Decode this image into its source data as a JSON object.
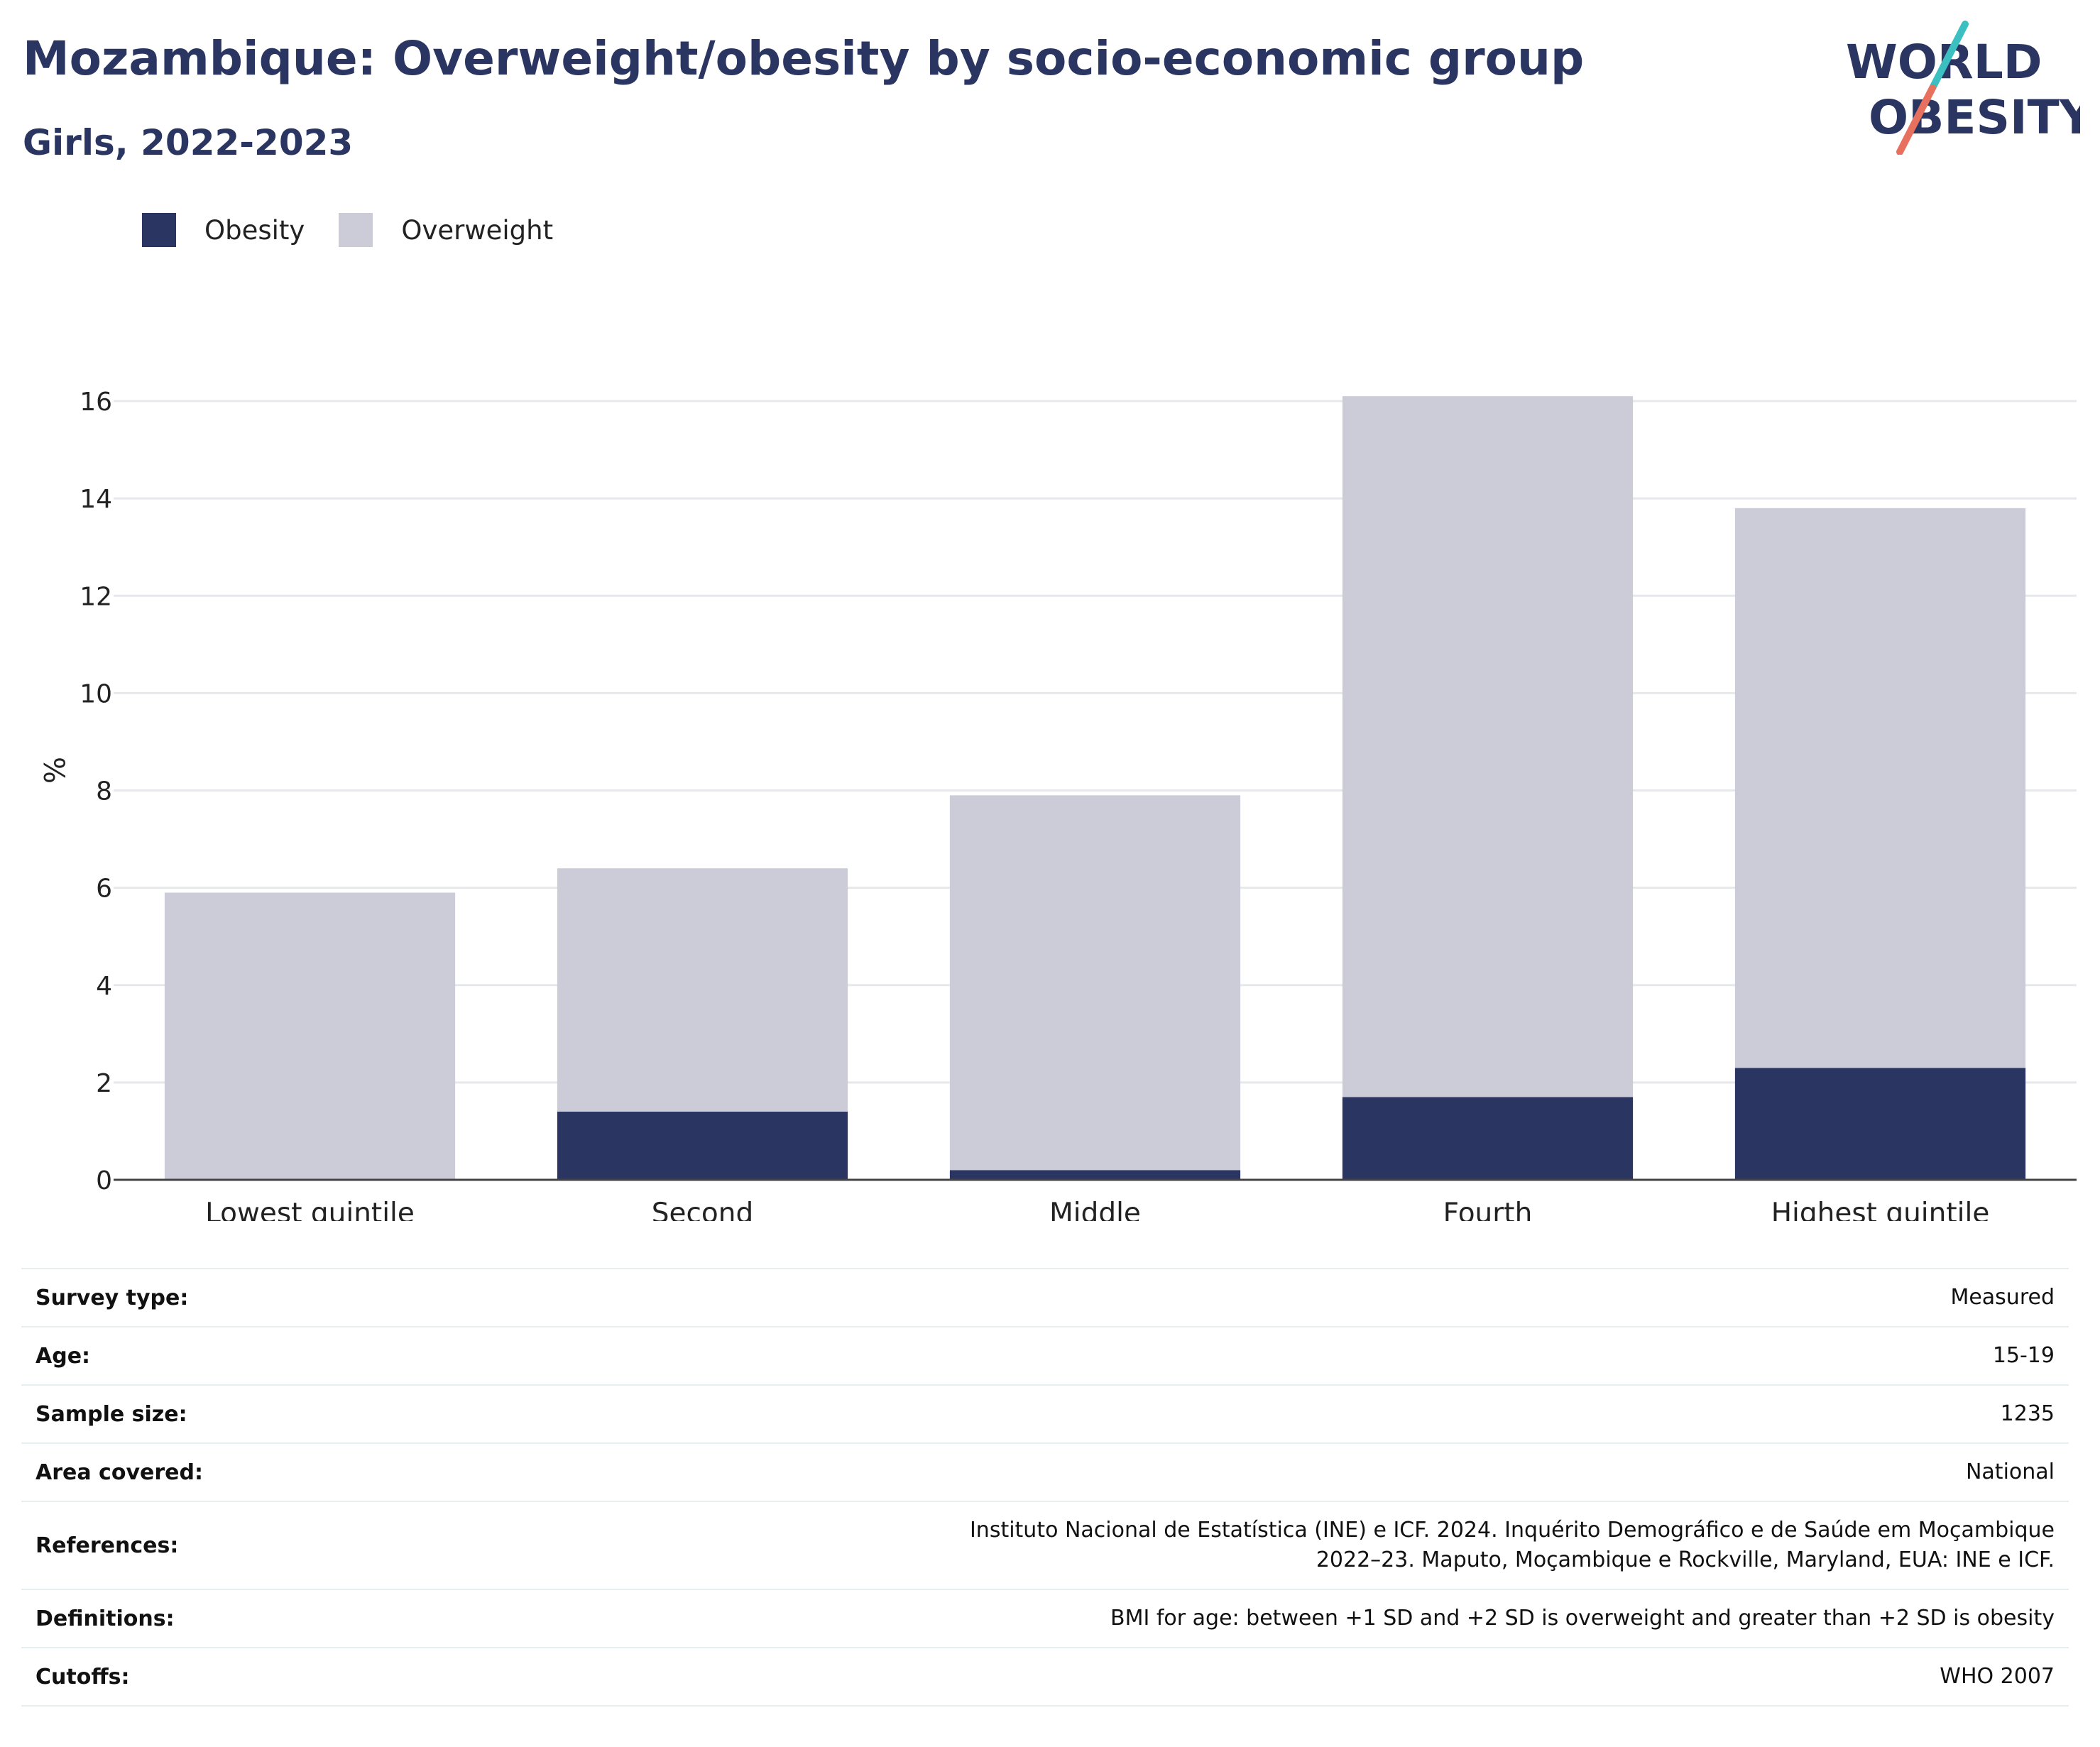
{
  "header": {
    "title": "Mozambique: Overweight/obesity by socio-economic group",
    "subtitle": "Girls, 2022-2023"
  },
  "logo": {
    "line1": "WORLD",
    "line2": "OBESITY",
    "colors": {
      "text": "#2b3561",
      "slash_teal": "#3bbfc0",
      "slash_coral": "#e8705e"
    }
  },
  "legend": {
    "items": [
      {
        "label": "Obesity",
        "color": "#2b3561"
      },
      {
        "label": "Overweight",
        "color": "#cbccd7"
      }
    ]
  },
  "chart_data": {
    "type": "bar",
    "stacked": true,
    "categories": [
      "Lowest quintile",
      "Second",
      "Middle",
      "Fourth",
      "Highest quintile"
    ],
    "series": [
      {
        "name": "Obesity",
        "values": [
          0,
          1.4,
          0.2,
          1.7,
          2.3
        ],
        "color": "#2b3561"
      },
      {
        "name": "Overweight",
        "values": [
          5.9,
          5.0,
          7.7,
          14.4,
          11.5
        ],
        "color": "#cbccd7"
      }
    ],
    "ylabel": "%",
    "ylim": [
      0,
      16
    ],
    "yticks": [
      "0",
      "2",
      "4",
      "6",
      "8",
      "10",
      "12",
      "14",
      "16"
    ],
    "grid": true,
    "legend_position": "top-left"
  },
  "info_table": {
    "rows": [
      {
        "key": "Survey type:",
        "value": "Measured"
      },
      {
        "key": "Age:",
        "value": "15-19"
      },
      {
        "key": "Sample size:",
        "value": "1235"
      },
      {
        "key": "Area covered:",
        "value": "National"
      },
      {
        "key": "References:",
        "value": "Instituto Nacional de Estatística (INE) e ICF. 2024. Inquérito Demográfico e de Saúde em Moçambique 2022–23. Maputo, Moçambique e Rockville, Maryland, EUA: INE e ICF."
      },
      {
        "key": "Definitions:",
        "value": "BMI for age: between +1 SD and +2 SD is overweight and greater than +2 SD is obesity"
      },
      {
        "key": "Cutoffs:",
        "value": "WHO 2007"
      }
    ]
  }
}
